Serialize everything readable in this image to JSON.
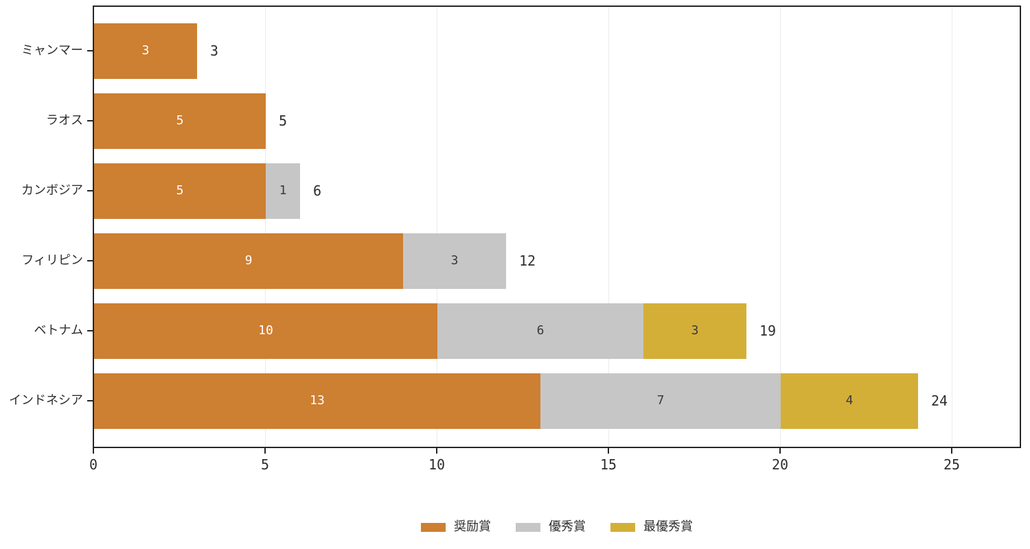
{
  "chart_data": {
    "type": "bar",
    "orientation": "horizontal",
    "stacked": true,
    "title": "",
    "xlabel": "",
    "ylabel": "",
    "categories": [
      "ミャンマー",
      "ラオス",
      "カンボジア",
      "フィリピン",
      "ベトナム",
      "インドネシア"
    ],
    "series": [
      {
        "name": "奨励賞",
        "color": "#cd7f32",
        "label_color": "#ffffff",
        "values": [
          3,
          5,
          5,
          9,
          10,
          13
        ]
      },
      {
        "name": "優秀賞",
        "color": "#c6c6c6",
        "label_color": "#3a3a3a",
        "values": [
          0,
          0,
          1,
          3,
          6,
          7
        ]
      },
      {
        "name": "最優秀賞",
        "color": "#d4af37",
        "label_color": "#3a3a3a",
        "values": [
          0,
          0,
          0,
          0,
          3,
          4
        ]
      }
    ],
    "totals": [
      3,
      5,
      6,
      12,
      19,
      24
    ],
    "x_ticks": [
      0,
      5,
      10,
      15,
      20,
      25
    ],
    "xlim": [
      0,
      27
    ],
    "grid": "vertical",
    "legend_position": "bottom-center"
  },
  "colors": {
    "axis": "#262626",
    "grid": "#ebebeb",
    "text": "#2e2e2e",
    "background": "#ffffff"
  }
}
